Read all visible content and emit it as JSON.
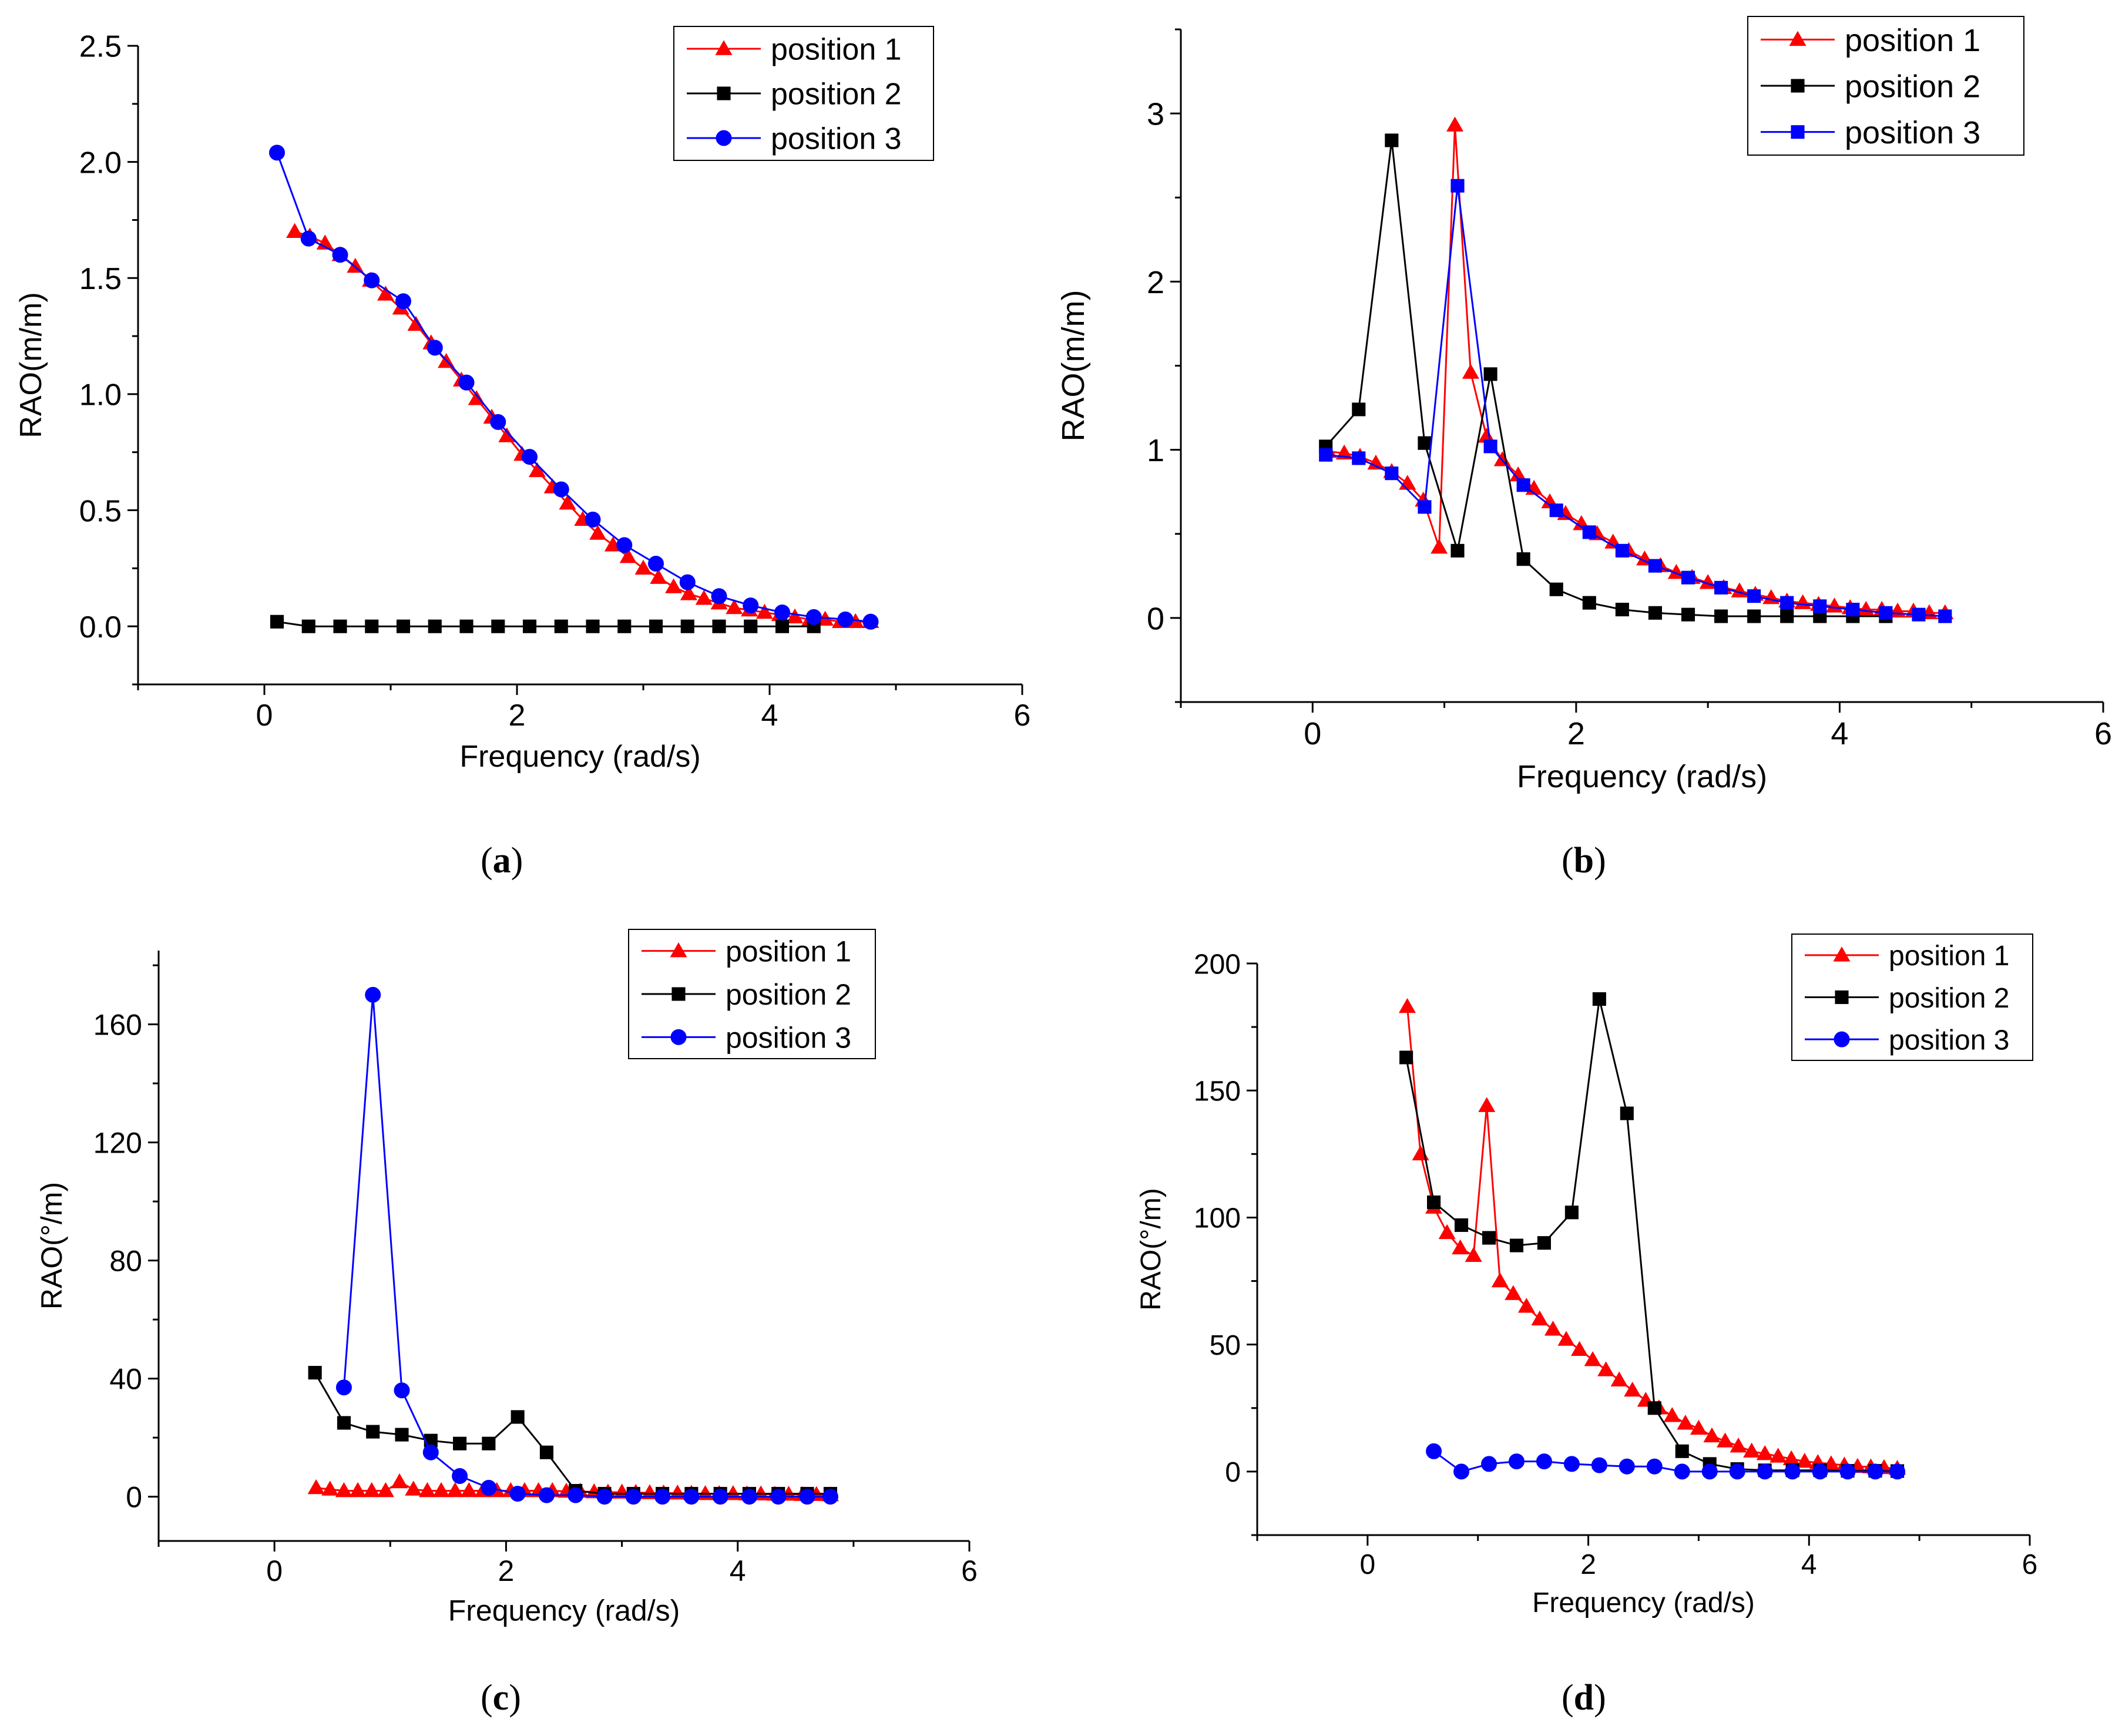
{
  "chart_data": [
    {
      "id": "a",
      "panel_label": "a",
      "type": "line",
      "xlabel": "Frequency (rad/s)",
      "ylabel": "RAO(m/m)",
      "xlim": [
        -1,
        6
      ],
      "ylim": [
        -0.25,
        2.5
      ],
      "xticks": [
        0,
        2,
        4,
        6
      ],
      "yticks": [
        0.0,
        0.5,
        1.0,
        1.5,
        2.0,
        2.5
      ],
      "ytick_labels": [
        "0.0",
        "0.5",
        "1.0",
        "1.5",
        "2.0",
        "2.5"
      ],
      "legend_position": "top-right",
      "series": [
        {
          "name": "position 1",
          "color": "#ff0000",
          "marker": "triangle",
          "x": [
            0.24,
            0.36,
            0.48,
            0.6,
            0.72,
            0.84,
            0.96,
            1.08,
            1.2,
            1.32,
            1.44,
            1.56,
            1.68,
            1.8,
            1.92,
            2.04,
            2.16,
            2.28,
            2.4,
            2.52,
            2.64,
            2.76,
            2.88,
            3.0,
            3.12,
            3.24,
            3.36,
            3.48,
            3.6,
            3.72,
            3.84,
            3.96,
            4.08,
            4.2,
            4.32,
            4.44,
            4.56,
            4.68,
            4.8
          ],
          "y": [
            1.7,
            1.68,
            1.65,
            1.6,
            1.55,
            1.49,
            1.43,
            1.37,
            1.3,
            1.22,
            1.14,
            1.06,
            0.98,
            0.9,
            0.82,
            0.74,
            0.67,
            0.6,
            0.53,
            0.46,
            0.4,
            0.35,
            0.3,
            0.25,
            0.21,
            0.17,
            0.14,
            0.12,
            0.1,
            0.08,
            0.07,
            0.06,
            0.05,
            0.04,
            0.03,
            0.03,
            0.02,
            0.02,
            0.02
          ]
        },
        {
          "name": "position 2",
          "color": "#000000",
          "marker": "square",
          "x": [
            0.1,
            0.35,
            0.6,
            0.85,
            1.1,
            1.35,
            1.6,
            1.85,
            2.1,
            2.35,
            2.6,
            2.85,
            3.1,
            3.35,
            3.6,
            3.85,
            4.1,
            4.35
          ],
          "y": [
            0.02,
            0.0,
            0.0,
            0.0,
            0.0,
            0.0,
            0.0,
            0.0,
            0.0,
            0.0,
            0.0,
            0.0,
            0.0,
            0.0,
            0.0,
            0.0,
            0.0,
            0.0
          ]
        },
        {
          "name": "position 3",
          "color": "#0000ff",
          "marker": "circle",
          "x": [
            0.1,
            0.35,
            0.6,
            0.85,
            1.1,
            1.35,
            1.6,
            1.85,
            2.1,
            2.35,
            2.6,
            2.85,
            3.1,
            3.35,
            3.6,
            3.85,
            4.1,
            4.35,
            4.6,
            4.8
          ],
          "y": [
            2.04,
            1.67,
            1.6,
            1.49,
            1.4,
            1.2,
            1.05,
            0.88,
            0.73,
            0.59,
            0.46,
            0.35,
            0.27,
            0.19,
            0.13,
            0.09,
            0.06,
            0.04,
            0.03,
            0.02
          ]
        }
      ]
    },
    {
      "id": "b",
      "panel_label": "b",
      "type": "line",
      "xlabel": "Frequency (rad/s)",
      "ylabel": "RAO(m/m)",
      "xlim": [
        -1,
        6
      ],
      "ylim": [
        -0.5,
        3.5
      ],
      "xticks": [
        0,
        2,
        4,
        6
      ],
      "yticks": [
        0,
        1,
        2,
        3
      ],
      "ytick_labels": [
        "0",
        "1",
        "2",
        "3"
      ],
      "legend_position": "top-right",
      "series": [
        {
          "name": "position 1",
          "color": "#ff0000",
          "marker": "triangle",
          "x": [
            0.12,
            0.24,
            0.36,
            0.48,
            0.6,
            0.72,
            0.84,
            0.96,
            1.08,
            1.2,
            1.32,
            1.44,
            1.56,
            1.68,
            1.8,
            1.92,
            2.04,
            2.16,
            2.28,
            2.4,
            2.52,
            2.64,
            2.76,
            2.88,
            3.0,
            3.12,
            3.24,
            3.36,
            3.48,
            3.6,
            3.72,
            3.84,
            3.96,
            4.08,
            4.2,
            4.32,
            4.44,
            4.56,
            4.68,
            4.8
          ],
          "y": [
            0.99,
            0.98,
            0.96,
            0.92,
            0.87,
            0.8,
            0.7,
            0.42,
            2.93,
            1.46,
            1.08,
            0.94,
            0.85,
            0.77,
            0.69,
            0.62,
            0.56,
            0.5,
            0.45,
            0.4,
            0.35,
            0.31,
            0.27,
            0.24,
            0.21,
            0.18,
            0.16,
            0.14,
            0.12,
            0.1,
            0.09,
            0.08,
            0.07,
            0.06,
            0.05,
            0.05,
            0.04,
            0.04,
            0.03,
            0.03
          ]
        },
        {
          "name": "position 2",
          "color": "#000000",
          "marker": "square",
          "x": [
            0.1,
            0.35,
            0.6,
            0.85,
            1.1,
            1.35,
            1.6,
            1.85,
            2.1,
            2.35,
            2.6,
            2.85,
            3.1,
            3.35,
            3.6,
            3.85,
            4.1,
            4.35
          ],
          "y": [
            1.02,
            1.24,
            2.84,
            1.04,
            0.4,
            1.45,
            0.35,
            0.17,
            0.09,
            0.05,
            0.03,
            0.02,
            0.01,
            0.01,
            0.01,
            0.01,
            0.01,
            0.01
          ]
        },
        {
          "name": "position 3",
          "color": "#0000ff",
          "marker": "square",
          "x": [
            0.1,
            0.35,
            0.6,
            0.85,
            1.1,
            1.35,
            1.6,
            1.85,
            2.1,
            2.35,
            2.6,
            2.85,
            3.1,
            3.35,
            3.6,
            3.85,
            4.1,
            4.35,
            4.6,
            4.8
          ],
          "y": [
            0.97,
            0.95,
            0.86,
            0.66,
            2.57,
            1.02,
            0.79,
            0.64,
            0.51,
            0.4,
            0.31,
            0.24,
            0.18,
            0.13,
            0.09,
            0.07,
            0.05,
            0.03,
            0.02,
            0.01
          ]
        }
      ]
    },
    {
      "id": "c",
      "panel_label": "c",
      "type": "line",
      "xlabel": "Frequency (rad/s)",
      "ylabel": "RAO(°/m)",
      "xlim": [
        -1,
        6
      ],
      "ylim": [
        -15,
        185
      ],
      "xticks": [
        0,
        2,
        4,
        6
      ],
      "yticks": [
        0,
        40,
        80,
        120,
        160
      ],
      "ytick_labels": [
        "0",
        "40",
        "80",
        "120",
        "160"
      ],
      "legend_position": "top-right",
      "series": [
        {
          "name": "position 1",
          "color": "#ff0000",
          "marker": "triangle",
          "x": [
            0.36,
            0.48,
            0.6,
            0.72,
            0.84,
            0.96,
            1.08,
            1.2,
            1.32,
            1.44,
            1.56,
            1.68,
            1.8,
            1.92,
            2.04,
            2.16,
            2.28,
            2.4,
            2.52,
            2.64,
            2.76,
            2.88,
            3.0,
            3.12,
            3.24,
            3.36,
            3.48,
            3.6,
            3.72,
            3.84,
            3.96,
            4.08,
            4.2,
            4.32,
            4.44,
            4.56,
            4.68,
            4.8
          ],
          "y": [
            3.0,
            2.5,
            2.0,
            2.0,
            2.0,
            2.0,
            5.0,
            2.5,
            2.0,
            2.0,
            2.0,
            2.0,
            2.0,
            2.0,
            2.0,
            2.0,
            2.0,
            2.0,
            1.8,
            1.8,
            1.6,
            1.5,
            1.5,
            1.4,
            1.3,
            1.2,
            1.2,
            1.1,
            1.0,
            1.0,
            1.0,
            0.9,
            0.9,
            0.8,
            0.8,
            0.7,
            0.7,
            0.6
          ]
        },
        {
          "name": "position 2",
          "color": "#000000",
          "marker": "square",
          "x": [
            0.35,
            0.6,
            0.85,
            1.1,
            1.35,
            1.6,
            1.85,
            2.1,
            2.35,
            2.6,
            2.85,
            3.1,
            3.35,
            3.6,
            3.85,
            4.1,
            4.35,
            4.6,
            4.8
          ],
          "y": [
            42,
            25,
            22,
            21,
            19,
            18,
            18,
            27,
            15,
            2,
            1,
            1,
            1,
            1,
            1,
            1,
            1,
            1,
            1
          ]
        },
        {
          "name": "position 3",
          "color": "#0000ff",
          "marker": "circle",
          "x": [
            0.6,
            0.85,
            1.1,
            1.35,
            1.6,
            1.85,
            2.1,
            2.35,
            2.6,
            2.85,
            3.1,
            3.35,
            3.6,
            3.85,
            4.1,
            4.35,
            4.6,
            4.8
          ],
          "y": [
            37,
            170,
            36,
            15,
            7,
            3,
            1,
            0.5,
            0.5,
            0,
            0,
            0,
            0,
            0,
            0,
            0,
            0,
            0
          ]
        }
      ]
    },
    {
      "id": "d",
      "panel_label": "d",
      "type": "line",
      "xlabel": "Frequency (rad/s)",
      "ylabel": "RAO(°/m)",
      "xlim": [
        -1,
        6
      ],
      "ylim": [
        -25,
        200
      ],
      "xticks": [
        0,
        2,
        4,
        6
      ],
      "yticks": [
        0,
        50,
        100,
        150,
        200
      ],
      "ytick_labels": [
        "0",
        "50",
        "100",
        "150",
        "200"
      ],
      "legend_position": "top-right",
      "series": [
        {
          "name": "position 1",
          "color": "#ff0000",
          "marker": "triangle",
          "x": [
            0.36,
            0.48,
            0.6,
            0.72,
            0.84,
            0.96,
            1.08,
            1.2,
            1.32,
            1.44,
            1.56,
            1.68,
            1.8,
            1.92,
            2.04,
            2.16,
            2.28,
            2.4,
            2.52,
            2.64,
            2.76,
            2.88,
            3.0,
            3.12,
            3.24,
            3.36,
            3.48,
            3.6,
            3.72,
            3.84,
            3.96,
            4.08,
            4.2,
            4.32,
            4.44,
            4.56,
            4.68,
            4.8
          ],
          "y": [
            183,
            125,
            104,
            94,
            88,
            85,
            144,
            75,
            70,
            65,
            60,
            56,
            52,
            48,
            44,
            40,
            36,
            32,
            28,
            25,
            22,
            19,
            17,
            14,
            12,
            10,
            8,
            7,
            6,
            5,
            4,
            3.5,
            3,
            2.5,
            2,
            1.8,
            1.5,
            1.2
          ]
        },
        {
          "name": "position 2",
          "color": "#000000",
          "marker": "square",
          "x": [
            0.35,
            0.6,
            0.85,
            1.1,
            1.35,
            1.6,
            1.85,
            2.1,
            2.35,
            2.6,
            2.85,
            3.1,
            3.35,
            3.6,
            3.85,
            4.1,
            4.35,
            4.6,
            4.8
          ],
          "y": [
            163,
            106,
            97,
            92,
            89,
            90,
            102,
            186,
            141,
            25,
            8,
            3,
            1,
            0.5,
            0.5,
            0.5,
            0.3,
            0.3,
            0.2
          ]
        },
        {
          "name": "position 3",
          "color": "#0000ff",
          "marker": "circle",
          "x": [
            0.6,
            0.85,
            1.1,
            1.35,
            1.6,
            1.85,
            2.1,
            2.35,
            2.6,
            2.85,
            3.1,
            3.35,
            3.6,
            3.85,
            4.1,
            4.35,
            4.6,
            4.8
          ],
          "y": [
            8,
            0,
            3,
            4,
            4,
            3,
            2.5,
            2,
            2,
            0,
            0,
            0,
            0,
            0,
            0,
            0,
            0,
            0
          ]
        }
      ]
    }
  ]
}
